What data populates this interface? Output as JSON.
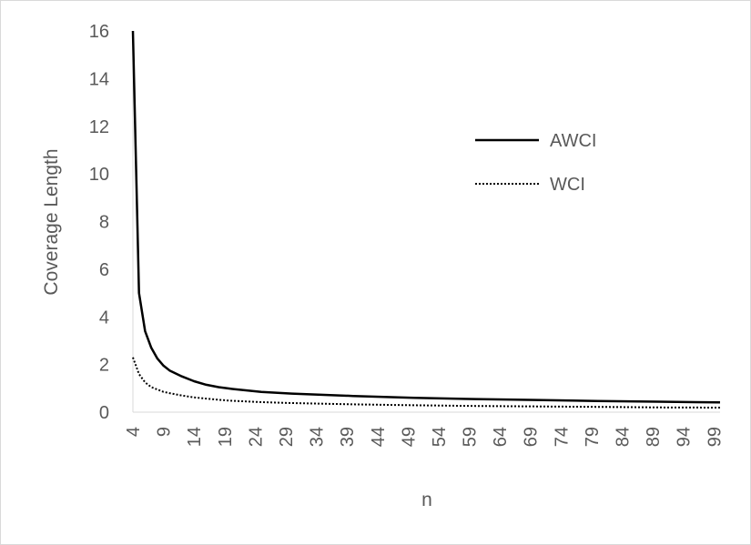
{
  "chart_data": {
    "type": "line",
    "title": "",
    "xlabel": "n",
    "ylabel": "Coverage Length",
    "ylim": [
      0,
      16
    ],
    "yticks": [
      0,
      2,
      4,
      6,
      8,
      10,
      12,
      14,
      16
    ],
    "xrange": [
      4,
      100
    ],
    "xtick_labels": [
      "4",
      "9",
      "14",
      "19",
      "24",
      "29",
      "34",
      "39",
      "44",
      "49",
      "54",
      "59",
      "64",
      "69",
      "74",
      "79",
      "84",
      "89",
      "94",
      "99"
    ],
    "grid": false,
    "legend_position": "right",
    "series": [
      {
        "name": "AWCI",
        "style": "solid",
        "color": "#000000",
        "x": [
          4,
          5,
          6,
          7,
          8,
          9,
          10,
          12,
          14,
          16,
          18,
          20,
          25,
          30,
          40,
          50,
          60,
          70,
          80,
          90,
          100
        ],
        "values": [
          16.0,
          5.0,
          3.4,
          2.7,
          2.25,
          1.95,
          1.75,
          1.5,
          1.3,
          1.15,
          1.05,
          0.98,
          0.85,
          0.78,
          0.68,
          0.6,
          0.55,
          0.51,
          0.47,
          0.44,
          0.41
        ]
      },
      {
        "name": "WCI",
        "style": "dotted",
        "color": "#000000",
        "x": [
          4,
          5,
          6,
          7,
          8,
          9,
          10,
          12,
          14,
          16,
          18,
          20,
          25,
          30,
          40,
          50,
          60,
          70,
          80,
          90,
          100
        ],
        "values": [
          2.3,
          1.6,
          1.25,
          1.05,
          0.95,
          0.85,
          0.8,
          0.7,
          0.62,
          0.57,
          0.52,
          0.48,
          0.42,
          0.38,
          0.33,
          0.29,
          0.26,
          0.24,
          0.22,
          0.2,
          0.19
        ]
      }
    ]
  }
}
